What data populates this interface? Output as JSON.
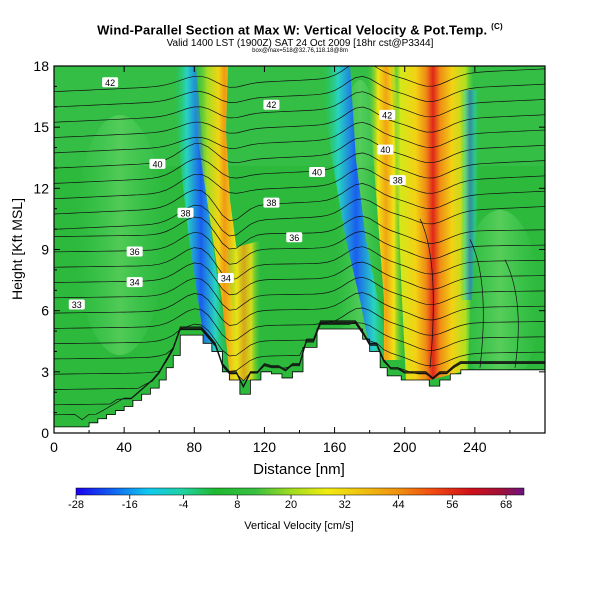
{
  "header": {
    "title": "Wind-Parallel Section at Max W: Vertical Velocity & Pot.Temp.",
    "copyright": "(C)",
    "valid_time": "Valid 1400 LST (1900Z) SAT 24 Oct 2009 [18hr cst@P3344]",
    "section_info": "box@max=518@32.76,118.18@8m"
  },
  "chart_data": {
    "type": "heatmap",
    "xlabel": "Distance [nm]",
    "ylabel": "Height [Kft MSL]",
    "xlim": [
      0,
      280
    ],
    "ylim": [
      0,
      18
    ],
    "x_ticks": [
      "0",
      "40",
      "80",
      "120",
      "160",
      "200",
      "240"
    ],
    "y_ticks": [
      "0",
      "3",
      "6",
      "9",
      "12",
      "15",
      "18"
    ],
    "colorbar": {
      "label": "Vertical Velocity [cm/s]",
      "min": -28,
      "max": 72,
      "tick_labels": [
        "-28",
        "-16",
        "-4",
        "8",
        "20",
        "32",
        "44",
        "56",
        "68"
      ]
    },
    "terrain": [
      [
        0,
        0.3
      ],
      [
        10,
        0.3
      ],
      [
        20,
        0.5
      ],
      [
        25,
        0.7
      ],
      [
        30,
        0.9
      ],
      [
        35,
        1.1
      ],
      [
        40,
        1.3
      ],
      [
        45,
        1.6
      ],
      [
        50,
        1.9
      ],
      [
        55,
        2.2
      ],
      [
        60,
        2.6
      ],
      [
        64,
        3.2
      ],
      [
        68,
        3.8
      ],
      [
        72,
        4.8
      ],
      [
        80,
        4.8
      ],
      [
        85,
        4.4
      ],
      [
        90,
        4.0
      ],
      [
        96,
        3.0
      ],
      [
        100,
        2.6
      ],
      [
        106,
        1.9
      ],
      [
        112,
        2.6
      ],
      [
        118,
        3.0
      ],
      [
        124,
        2.9
      ],
      [
        130,
        2.7
      ],
      [
        136,
        3.0
      ],
      [
        142,
        4.2
      ],
      [
        150,
        5.1
      ],
      [
        172,
        5.1
      ],
      [
        176,
        4.6
      ],
      [
        180,
        4.0
      ],
      [
        186,
        3.2
      ],
      [
        190,
        2.8
      ],
      [
        198,
        2.6
      ],
      [
        212,
        2.6
      ],
      [
        214,
        2.3
      ],
      [
        220,
        2.6
      ],
      [
        226,
        2.9
      ],
      [
        232,
        3.1
      ],
      [
        280,
        3.1
      ]
    ],
    "contour_labels": [
      {
        "text": "42",
        "x": 32,
        "y": 17.2
      },
      {
        "text": "42",
        "x": 124,
        "y": 16.1
      },
      {
        "text": "42",
        "x": 190,
        "y": 15.6
      },
      {
        "text": "40",
        "x": 59,
        "y": 13.2
      },
      {
        "text": "40",
        "x": 150,
        "y": 12.8
      },
      {
        "text": "40",
        "x": 189,
        "y": 13.9
      },
      {
        "text": "38",
        "x": 75,
        "y": 10.8
      },
      {
        "text": "38",
        "x": 124,
        "y": 11.3
      },
      {
        "text": "38",
        "x": 196,
        "y": 12.4
      },
      {
        "text": "36",
        "x": 46,
        "y": 8.9
      },
      {
        "text": "36",
        "x": 137,
        "y": 9.6
      },
      {
        "text": "34",
        "x": 46,
        "y": 7.4
      },
      {
        "text": "34",
        "x": 98,
        "y": 7.6
      },
      {
        "text": "33",
        "x": 13,
        "y": 6.3
      }
    ]
  }
}
